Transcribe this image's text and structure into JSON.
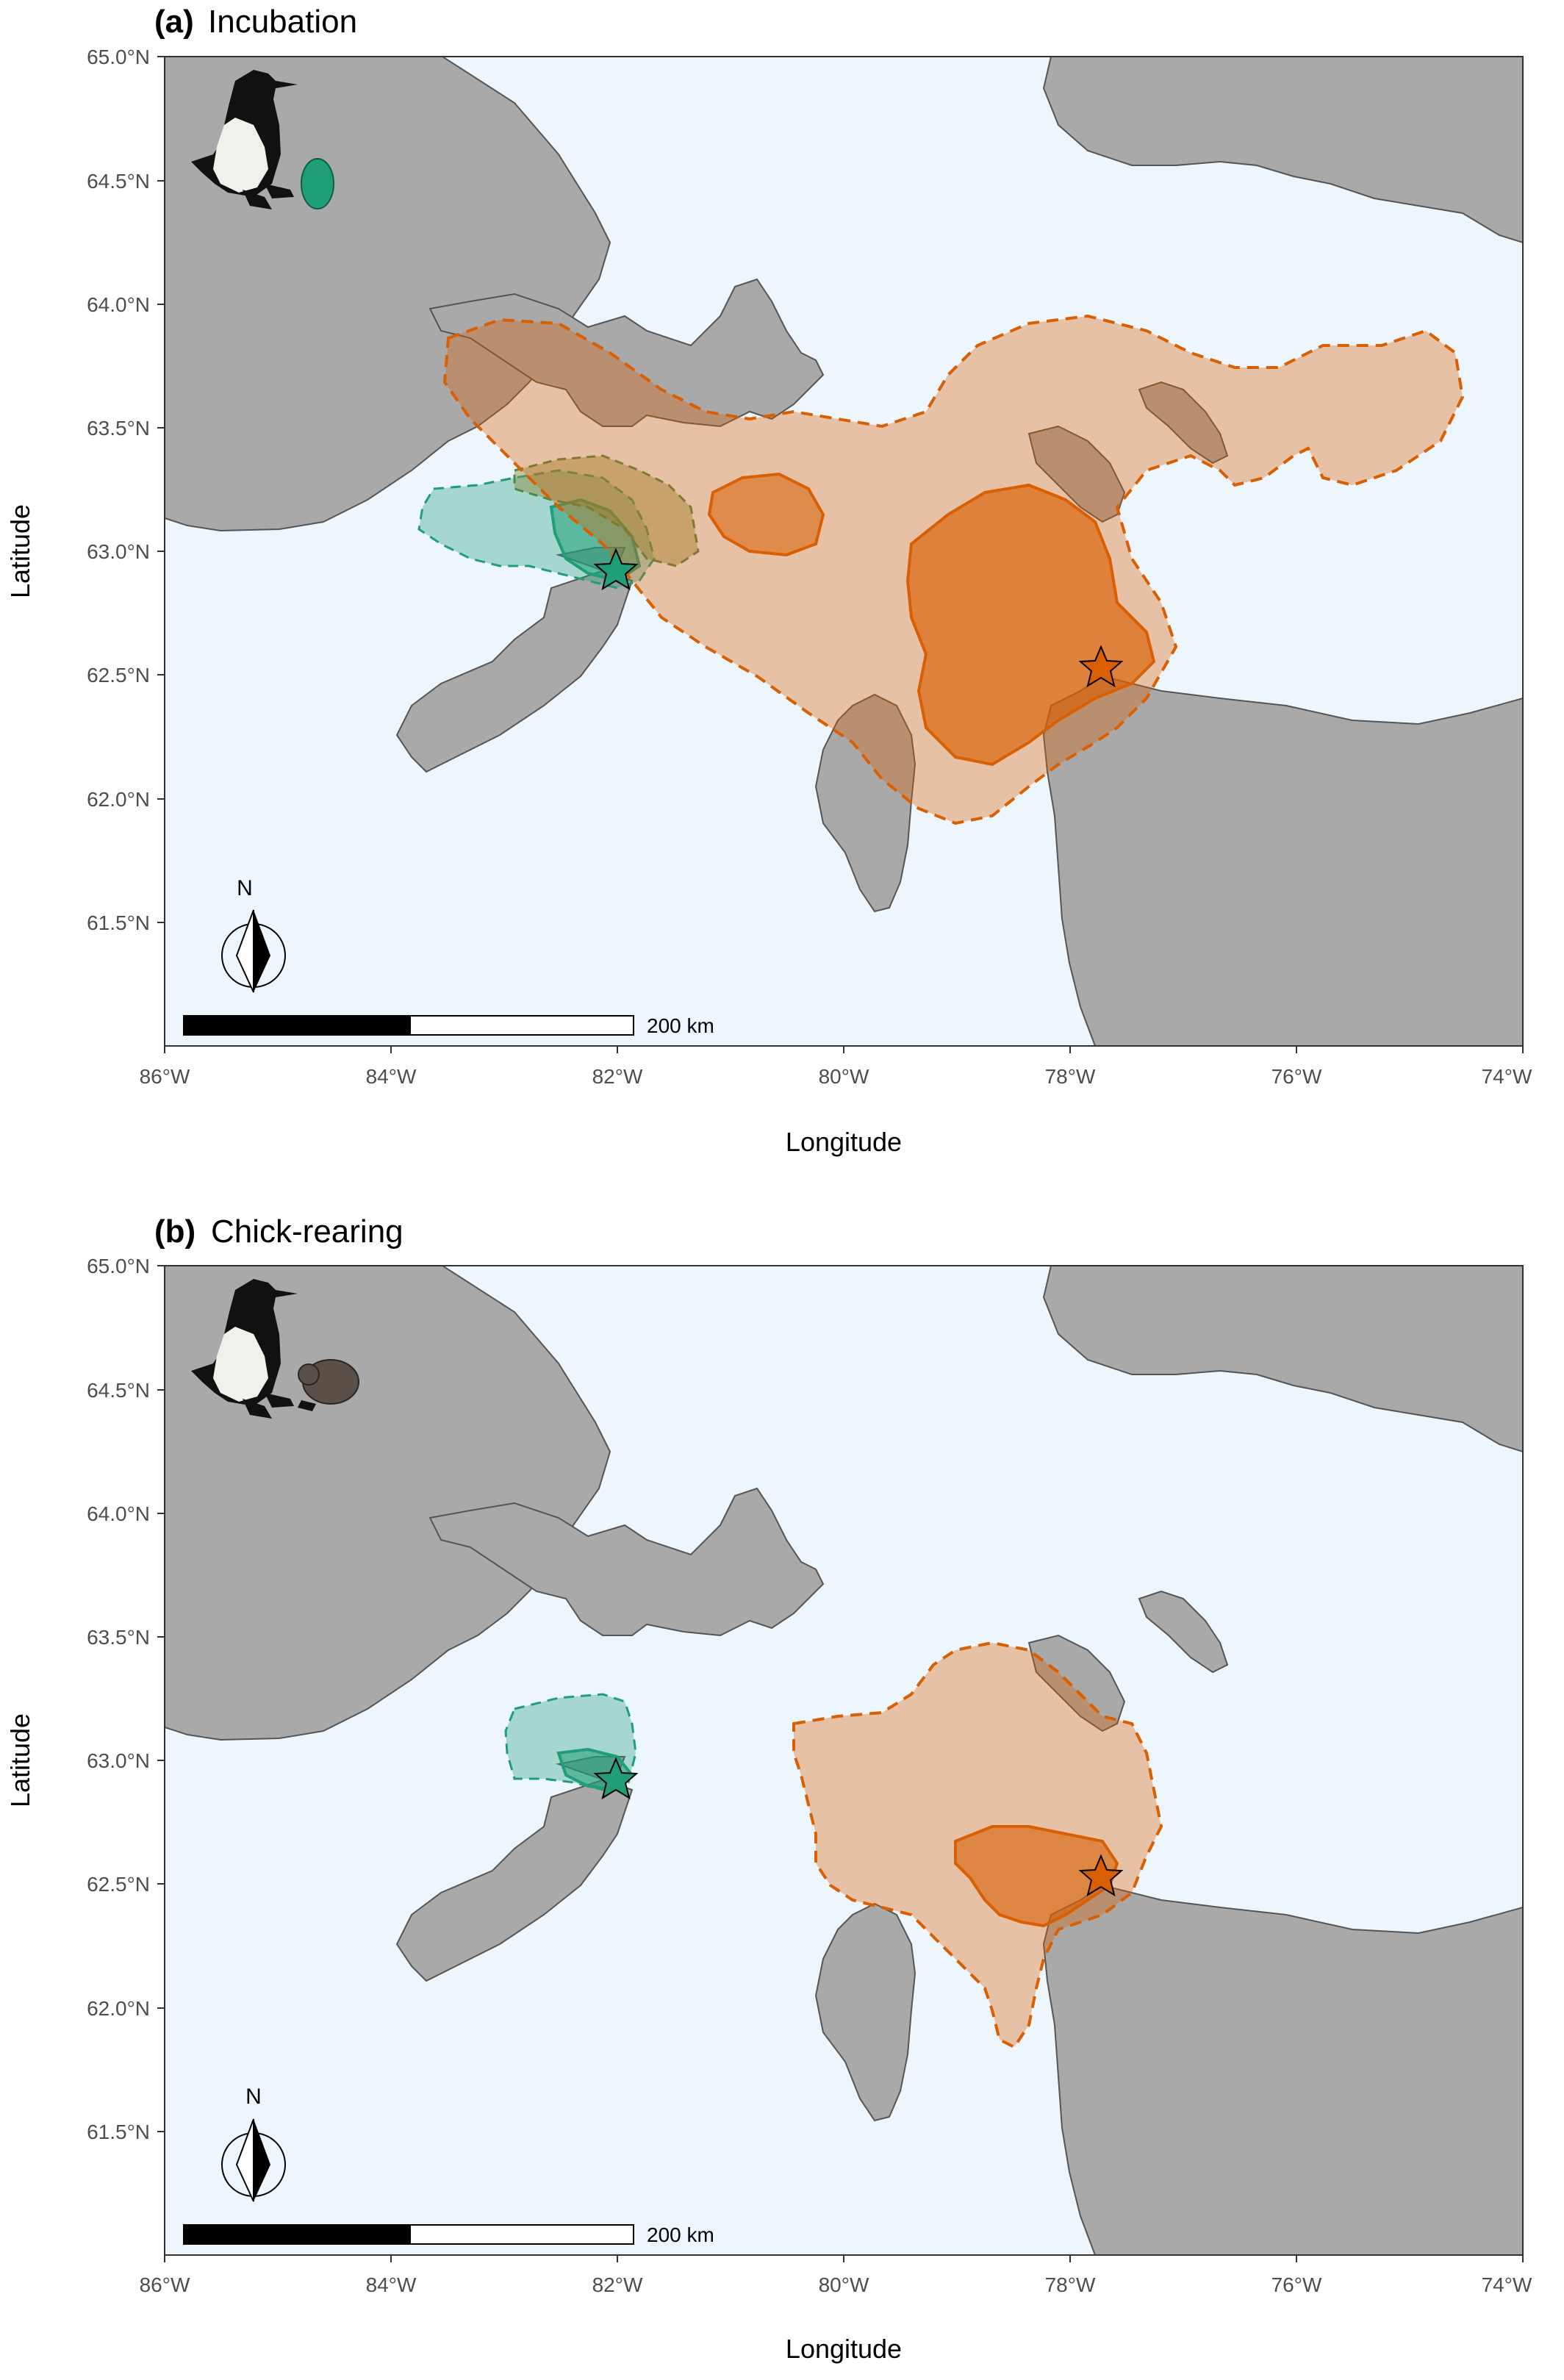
{
  "panels": [
    {
      "label": "(a)",
      "title": "Incubation",
      "xlabel": "Longitude",
      "ylabel": "Latitude",
      "x_ticks": [
        "86°W",
        "84°W",
        "82°W",
        "80°W",
        "78°W",
        "76°W",
        "74°W"
      ],
      "y_ticks": [
        "65.0°N",
        "64.5°N",
        "64.0°N",
        "63.5°N",
        "63.0°N",
        "62.5°N",
        "62.0°N",
        "61.5°N"
      ],
      "scale_label": "200 km",
      "north_label": "N",
      "icon": "murre-with-egg-icon"
    },
    {
      "label": "(b)",
      "title": "Chick-rearing",
      "xlabel": "Longitude",
      "ylabel": "Latitude",
      "x_ticks": [
        "86°W",
        "84°W",
        "82°W",
        "80°W",
        "78°W",
        "76°W",
        "74°W"
      ],
      "y_ticks": [
        "65.0°N",
        "64.5°N",
        "64.0°N",
        "63.5°N",
        "63.0°N",
        "62.5°N",
        "62.0°N",
        "61.5°N"
      ],
      "scale_label": "200 km",
      "north_label": "N",
      "icon": "murre-with-chick-icon"
    }
  ],
  "chart_data": {
    "type": "map",
    "x_range": [
      -86,
      -74
    ],
    "y_range": [
      61,
      65
    ],
    "colonies": [
      {
        "lon": -82.0,
        "lat": 62.95,
        "color": "#1f9e78"
      },
      {
        "lon": -77.75,
        "lat": 62.55,
        "color": "#d95f02"
      }
    ],
    "colors": {
      "land": "#a9a9a9",
      "water": "#eef6fd",
      "colony_west": "#1f9e78",
      "colony_east": "#d95f02"
    }
  }
}
